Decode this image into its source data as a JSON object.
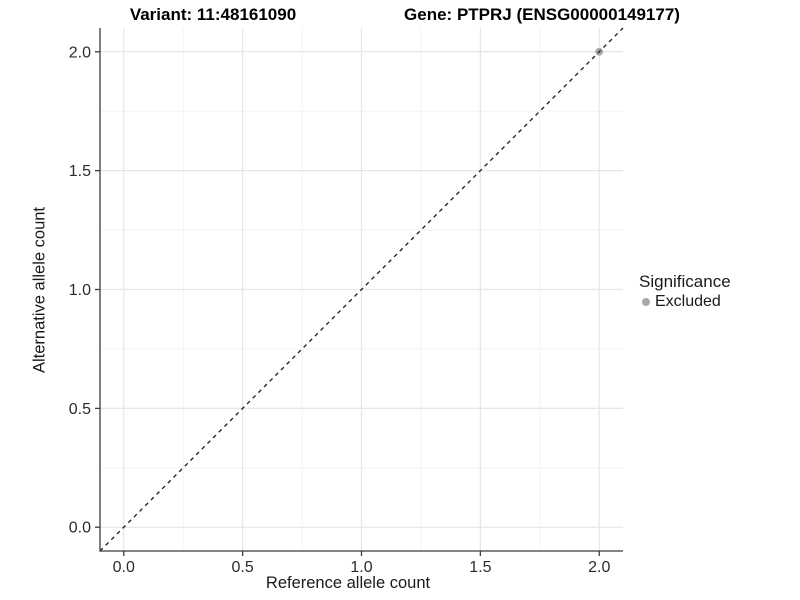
{
  "titles": {
    "variant": "Variant: 11:48161090",
    "gene": "Gene: PTPRJ (ENSG00000149177)"
  },
  "legend": {
    "title": "Significance",
    "items": [
      {
        "label": "Excluded",
        "color": "#a9a9a9"
      }
    ]
  },
  "chart_data": {
    "type": "scatter",
    "title_left": "Variant: 11:48161090",
    "title_right": "Gene: PTPRJ (ENSG00000149177)",
    "xlabel": "Reference allele count",
    "ylabel": "Alternative allele count",
    "xlim": [
      -0.1,
      2.1
    ],
    "ylim": [
      -0.1,
      2.1
    ],
    "xticks": [
      0.0,
      0.5,
      1.0,
      1.5,
      2.0
    ],
    "yticks": [
      0.0,
      0.5,
      1.0,
      1.5,
      2.0
    ],
    "xtick_labels": [
      "0.0",
      "0.5",
      "1.0",
      "1.5",
      "2.0"
    ],
    "ytick_labels": [
      "0.0",
      "0.5",
      "1.0",
      "1.5",
      "2.0"
    ],
    "minor_xticks": [
      0.25,
      0.75,
      1.25,
      1.75
    ],
    "minor_yticks": [
      0.25,
      0.75,
      1.25,
      1.75
    ],
    "grid": true,
    "legend_position": "right",
    "reference_line": {
      "type": "identity",
      "slope": 1,
      "intercept": 0,
      "style": "dashed",
      "color": "#1a1a1a"
    },
    "series": [
      {
        "name": "Excluded",
        "color": "#a9a9a9",
        "points": [
          {
            "x": 2.0,
            "y": 2.0
          }
        ]
      }
    ],
    "colors": {
      "axis_line": "#3c3c3c",
      "tick_label": "#2b2b2b",
      "grid_major": "#e6e6e6",
      "grid_minor": "#f2f2f2",
      "background": "#ffffff"
    }
  }
}
